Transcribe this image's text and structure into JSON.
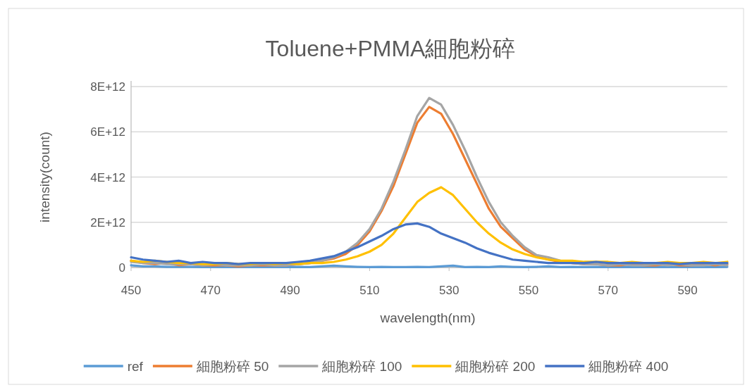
{
  "chart_data": {
    "type": "line",
    "title": "Toluene+PMMA細胞粉碎",
    "xlabel": "wavelength(nm)",
    "ylabel": "intensity(count)",
    "x": [
      450,
      453,
      456,
      459,
      462,
      465,
      468,
      471,
      474,
      477,
      480,
      483,
      486,
      489,
      492,
      495,
      498,
      501,
      504,
      507,
      510,
      513,
      516,
      519,
      522,
      525,
      528,
      531,
      534,
      537,
      540,
      543,
      546,
      549,
      552,
      555,
      558,
      561,
      564,
      567,
      570,
      573,
      576,
      579,
      582,
      585,
      588,
      591,
      594,
      597,
      600
    ],
    "xlim": [
      450,
      600
    ],
    "xticks": [
      450,
      470,
      490,
      510,
      530,
      550,
      570,
      590
    ],
    "ylim": [
      0,
      8000000000000.0
    ],
    "yticks": [
      {
        "value": 0,
        "label": "0"
      },
      {
        "value": 2000000000000.0,
        "label": "2E+12"
      },
      {
        "value": 4000000000000.0,
        "label": "4E+12"
      },
      {
        "value": 6000000000000.0,
        "label": "6E+12"
      },
      {
        "value": 8000000000000.0,
        "label": "8E+12"
      }
    ],
    "grid": "y",
    "legend": "bottom",
    "line_style": "solid",
    "marker": "none",
    "series": [
      {
        "name": "ref",
        "color": "#5b9bd5",
        "values": [
          100000000000.0,
          50000000000.0,
          50000000000.0,
          30000000000.0,
          30000000000.0,
          30000000000.0,
          20000000000.0,
          20000000000.0,
          30000000000.0,
          20000000000.0,
          20000000000.0,
          30000000000.0,
          20000000000.0,
          20000000000.0,
          30000000000.0,
          20000000000.0,
          50000000000.0,
          80000000000.0,
          50000000000.0,
          30000000000.0,
          20000000000.0,
          30000000000.0,
          20000000000.0,
          20000000000.0,
          30000000000.0,
          20000000000.0,
          50000000000.0,
          80000000000.0,
          20000000000.0,
          30000000000.0,
          20000000000.0,
          50000000000.0,
          30000000000.0,
          20000000000.0,
          30000000000.0,
          50000000000.0,
          20000000000.0,
          30000000000.0,
          20000000000.0,
          30000000000.0,
          20000000000.0,
          20000000000.0,
          30000000000.0,
          20000000000.0,
          20000000000.0,
          30000000000.0,
          20000000000.0,
          20000000000.0,
          30000000000.0,
          20000000000.0,
          30000000000.0
        ]
      },
      {
        "name": "細胞粉碎 50",
        "color": "#ed7d31",
        "values": [
          300000000000.0,
          200000000000.0,
          150000000000.0,
          200000000000.0,
          100000000000.0,
          150000000000.0,
          100000000000.0,
          100000000000.0,
          100000000000.0,
          50000000000.0,
          100000000000.0,
          100000000000.0,
          100000000000.0,
          100000000000.0,
          150000000000.0,
          200000000000.0,
          300000000000.0,
          400000000000.0,
          600000000000.0,
          1000000000000.0,
          1600000000000.0,
          2500000000000.0,
          3600000000000.0,
          5000000000000.0,
          6400000000000.0,
          7100000000000.0,
          6800000000000.0,
          5900000000000.0,
          4800000000000.0,
          3700000000000.0,
          2600000000000.0,
          1800000000000.0,
          1300000000000.0,
          800000000000.0,
          500000000000.0,
          350000000000.0,
          250000000000.0,
          200000000000.0,
          150000000000.0,
          150000000000.0,
          100000000000.0,
          100000000000.0,
          150000000000.0,
          100000000000.0,
          100000000000.0,
          150000000000.0,
          100000000000.0,
          100000000000.0,
          150000000000.0,
          100000000000.0,
          150000000000.0
        ]
      },
      {
        "name": "細胞粉碎 100",
        "color": "#a5a5a5",
        "values": [
          250000000000.0,
          200000000000.0,
          200000000000.0,
          150000000000.0,
          150000000000.0,
          150000000000.0,
          100000000000.0,
          150000000000.0,
          100000000000.0,
          100000000000.0,
          100000000000.0,
          150000000000.0,
          100000000000.0,
          100000000000.0,
          150000000000.0,
          200000000000.0,
          300000000000.0,
          450000000000.0,
          700000000000.0,
          1100000000000.0,
          1700000000000.0,
          2600000000000.0,
          3800000000000.0,
          5200000000000.0,
          6700000000000.0,
          7500000000000.0,
          7200000000000.0,
          6300000000000.0,
          5200000000000.0,
          4000000000000.0,
          2900000000000.0,
          2000000000000.0,
          1400000000000.0,
          900000000000.0,
          550000000000.0,
          450000000000.0,
          300000000000.0,
          200000000000.0,
          150000000000.0,
          150000000000.0,
          100000000000.0,
          150000000000.0,
          100000000000.0,
          100000000000.0,
          150000000000.0,
          100000000000.0,
          150000000000.0,
          100000000000.0,
          100000000000.0,
          150000000000.0,
          100000000000.0
        ]
      },
      {
        "name": "細胞粉碎 200",
        "color": "#ffc000",
        "values": [
          300000000000.0,
          250000000000.0,
          300000000000.0,
          250000000000.0,
          200000000000.0,
          200000000000.0,
          150000000000.0,
          150000000000.0,
          200000000000.0,
          150000000000.0,
          150000000000.0,
          200000000000.0,
          150000000000.0,
          200000000000.0,
          150000000000.0,
          200000000000.0,
          200000000000.0,
          250000000000.0,
          350000000000.0,
          500000000000.0,
          700000000000.0,
          1000000000000.0,
          1500000000000.0,
          2200000000000.0,
          2900000000000.0,
          3300000000000.0,
          3550000000000.0,
          3200000000000.0,
          2600000000000.0,
          2000000000000.0,
          1500000000000.0,
          1100000000000.0,
          800000000000.0,
          600000000000.0,
          450000000000.0,
          350000000000.0,
          300000000000.0,
          300000000000.0,
          250000000000.0,
          250000000000.0,
          250000000000.0,
          200000000000.0,
          250000000000.0,
          200000000000.0,
          200000000000.0,
          250000000000.0,
          200000000000.0,
          200000000000.0,
          250000000000.0,
          200000000000.0,
          250000000000.0
        ]
      },
      {
        "name": "細胞粉碎 400",
        "color": "#4472c4",
        "values": [
          450000000000.0,
          350000000000.0,
          300000000000.0,
          250000000000.0,
          300000000000.0,
          200000000000.0,
          250000000000.0,
          200000000000.0,
          200000000000.0,
          150000000000.0,
          200000000000.0,
          200000000000.0,
          200000000000.0,
          200000000000.0,
          250000000000.0,
          300000000000.0,
          400000000000.0,
          500000000000.0,
          700000000000.0,
          900000000000.0,
          1150000000000.0,
          1400000000000.0,
          1700000000000.0,
          1900000000000.0,
          1950000000000.0,
          1800000000000.0,
          1500000000000.0,
          1300000000000.0,
          1100000000000.0,
          850000000000.0,
          650000000000.0,
          500000000000.0,
          350000000000.0,
          300000000000.0,
          250000000000.0,
          200000000000.0,
          200000000000.0,
          200000000000.0,
          200000000000.0,
          250000000000.0,
          200000000000.0,
          200000000000.0,
          200000000000.0,
          200000000000.0,
          200000000000.0,
          200000000000.0,
          150000000000.0,
          200000000000.0,
          200000000000.0,
          200000000000.0,
          200000000000.0
        ]
      }
    ]
  }
}
